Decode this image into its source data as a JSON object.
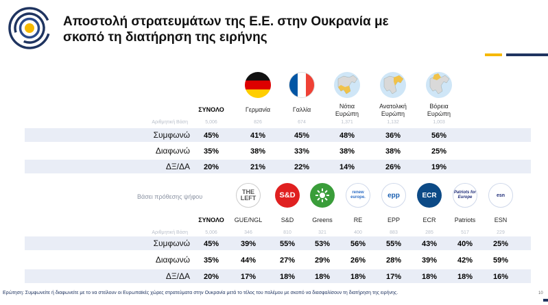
{
  "title": {
    "line1": "Αποστολή στρατευμάτων της Ε.Ε. στην Ουκρανία με",
    "line2": "σκοπό τη διατήρηση της ειρήνης"
  },
  "colors": {
    "navy": "#1f3460",
    "yellow": "#f5b800",
    "band": "#e9edf6"
  },
  "regions": {
    "columns": [
      {
        "label": "ΣΥΝΟΛΟ",
        "icon": "",
        "base": "5,006"
      },
      {
        "label": "Γερμανία",
        "icon": "germany-flag-icon",
        "base": "826"
      },
      {
        "label": "Γαλλία",
        "icon": "france-flag-icon",
        "base": "674"
      },
      {
        "label": "Νότια\nΕυρώπη",
        "icon": "south-europe-map-icon",
        "base": "1,371"
      },
      {
        "label": "Ανατολική\nΕυρώπη",
        "icon": "east-europe-map-icon",
        "base": "1,132"
      },
      {
        "label": "Βόρεια\nΕυρώπη",
        "icon": "north-europe-map-icon",
        "base": "1,003"
      }
    ],
    "base_label": "Αριθμητική Βάση",
    "rows": [
      {
        "label": "Συμφωνώ",
        "values": [
          "45%",
          "41%",
          "45%",
          "48%",
          "36%",
          "56%"
        ]
      },
      {
        "label": "Διαφωνώ",
        "values": [
          "35%",
          "38%",
          "33%",
          "38%",
          "38%",
          "25%"
        ]
      },
      {
        "label": "ΔΞ/ΔΑ",
        "values": [
          "20%",
          "21%",
          "22%",
          "14%",
          "26%",
          "19%"
        ]
      }
    ]
  },
  "parties": {
    "section_label": "Βάσει πρόθεσης ψήφου",
    "base_label": "Αριθμητική Βάση",
    "columns": [
      {
        "label": "ΣΥΝΟΛΟ",
        "logo_text": "",
        "base": "5,006"
      },
      {
        "label": "GUE/NGL",
        "logo_text": "THE LEFT",
        "base": "346"
      },
      {
        "label": "S&D",
        "logo_text": "S&D",
        "base": "810"
      },
      {
        "label": "Greens",
        "logo_text": "",
        "base": "321"
      },
      {
        "label": "RE",
        "logo_text": "renew europe.",
        "base": "400"
      },
      {
        "label": "EPP",
        "logo_text": "epp",
        "base": "883"
      },
      {
        "label": "ECR",
        "logo_text": "ECR",
        "base": "285"
      },
      {
        "label": "Patriots",
        "logo_text": "Patriots for Europe",
        "base": "517"
      },
      {
        "label": "ESN",
        "logo_text": "esn",
        "base": "229"
      }
    ],
    "rows": [
      {
        "label": "Συμφωνώ",
        "values": [
          "45%",
          "39%",
          "55%",
          "53%",
          "56%",
          "55%",
          "43%",
          "40%",
          "25%"
        ]
      },
      {
        "label": "Διαφωνώ",
        "values": [
          "35%",
          "44%",
          "27%",
          "29%",
          "26%",
          "28%",
          "39%",
          "42%",
          "59%"
        ]
      },
      {
        "label": "ΔΞ/ΔΑ",
        "values": [
          "20%",
          "17%",
          "18%",
          "18%",
          "18%",
          "17%",
          "18%",
          "18%",
          "16%"
        ]
      }
    ]
  },
  "footnote": "Ερώτηση: Συμφωνείτε ή διαφωνείτε με το να στείλουν οι Ευρωπαϊκές χώρες στρατεύματα στην Ουκρανία μετά το τέλος του πολέμου με σκοπό να διασφαλίσουν τη διατήρηση της ειρήνης.",
  "page_number": "10"
}
